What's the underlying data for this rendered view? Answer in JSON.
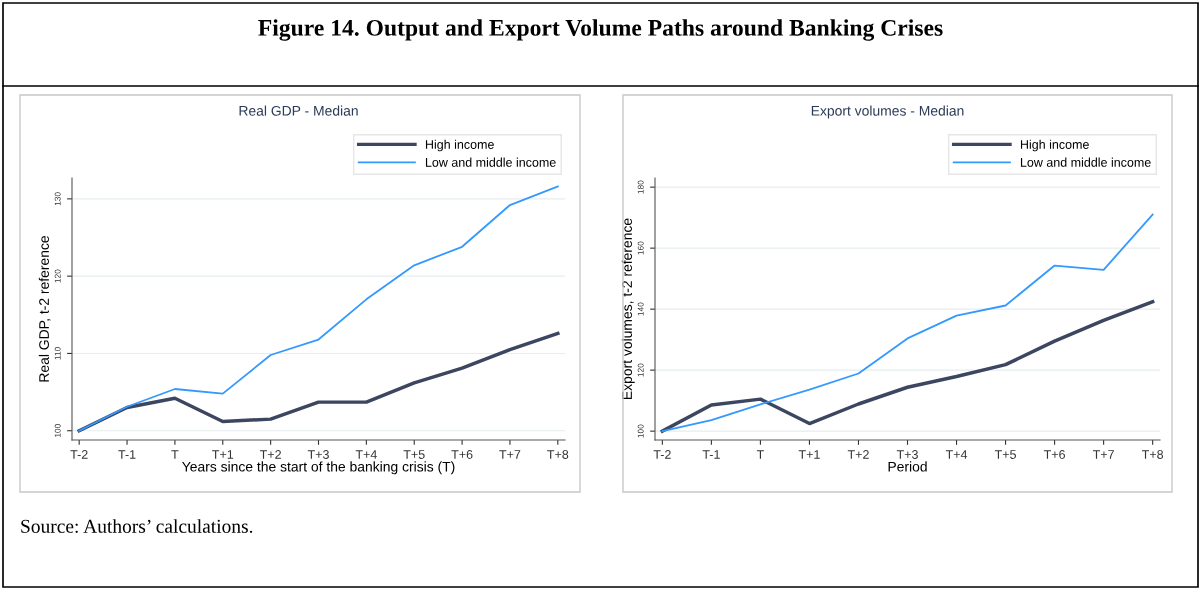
{
  "chart_data": [
    {
      "type": "line",
      "title": "Real GDP - Median",
      "xlabel": "Years since the start of the banking crisis (T)",
      "ylabel": "Real GDP, t-2 reference",
      "annotations": [
        "Figure 14. Output and Export Volume Paths around Banking Crises",
        "Source: Authors’ calculations."
      ],
      "categories": [
        "T-2",
        "T-1",
        "T",
        "T+1",
        "T+2",
        "T+3",
        "T+4",
        "T+5",
        "T+6",
        "T+7",
        "T+8"
      ],
      "series": [
        {
          "name": "High income",
          "color": "#3d4660",
          "values": [
            100,
            103.0,
            104.2,
            101.2,
            101.5,
            103.7,
            103.7,
            106.2,
            108.1,
            110.5,
            112.6
          ]
        },
        {
          "name": "Low and middle income",
          "color": "#3399ff",
          "values": [
            100,
            103.1,
            105.4,
            104.8,
            109.8,
            111.8,
            117.0,
            121.4,
            123.8,
            129.2,
            131.6
          ]
        }
      ],
      "ylim": [
        98.8,
        132.7
      ],
      "yticks": [
        100,
        110,
        120,
        130
      ],
      "grid": "y",
      "legend": "top right",
      "marker": "none",
      "line_style": "solid"
    },
    {
      "type": "line",
      "title": "Export volumes - Median",
      "xlabel": "Period",
      "ylabel": "Export volumes, t-2 reference",
      "categories": [
        "T-2",
        "T-1",
        "T",
        "T+1",
        "T+2",
        "T+3",
        "T+4",
        "T+5",
        "T+6",
        "T+7",
        "T+8"
      ],
      "series": [
        {
          "name": "High income",
          "color": "#3d4660",
          "values": [
            100,
            108.6,
            110.5,
            102.5,
            108.9,
            114.4,
            117.9,
            121.8,
            129.5,
            136.3,
            142.4
          ]
        },
        {
          "name": "Low and middle income",
          "color": "#3399ff",
          "values": [
            100,
            103.6,
            108.8,
            113.6,
            118.9,
            130.4,
            137.9,
            141.2,
            154.3,
            152.9,
            171.0
          ]
        }
      ],
      "ylim": [
        97.1,
        183
      ],
      "yticks": [
        100,
        120,
        140,
        160,
        180
      ],
      "grid": "y",
      "legend": "top right",
      "marker": "none",
      "line_style": "solid"
    }
  ]
}
